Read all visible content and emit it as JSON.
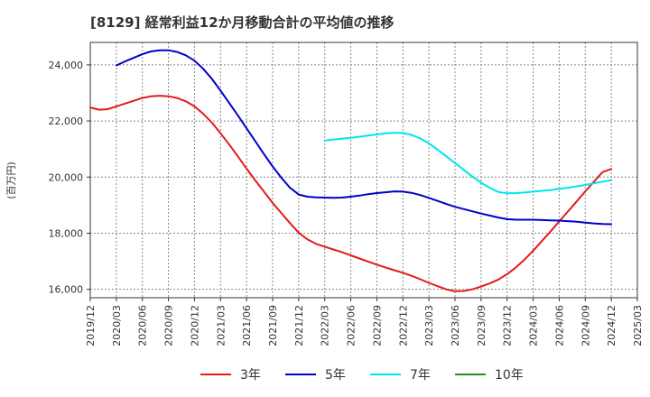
{
  "chart_data": {
    "type": "line",
    "title": "[8129]  経常利益12か月移動合計の平均値の推移",
    "ylabel": "(百万円)",
    "xlabel": "",
    "ylim": [
      15700,
      24800
    ],
    "yticks": [
      16000,
      18000,
      20000,
      22000,
      24000
    ],
    "ytick_labels": [
      "16,000",
      "18,000",
      "20,000",
      "22,000",
      "24,000"
    ],
    "xticks": [
      "2019/12",
      "2020/03",
      "2020/06",
      "2020/09",
      "2020/12",
      "2021/03",
      "2021/06",
      "2021/09",
      "2021/12",
      "2022/03",
      "2022/06",
      "2022/09",
      "2022/12",
      "2023/03",
      "2023/06",
      "2023/09",
      "2023/12",
      "2024/03",
      "2024/06",
      "2024/09",
      "2024/12",
      "2025/03"
    ],
    "grid": true,
    "legend_position": "bottom",
    "series": [
      {
        "name": "3年",
        "color": "#e41a1c",
        "x": [
          "2019/12",
          "2020/01",
          "2020/02",
          "2020/03",
          "2020/04",
          "2020/05",
          "2020/06",
          "2020/07",
          "2020/08",
          "2020/09",
          "2020/10",
          "2020/11",
          "2020/12",
          "2021/01",
          "2021/02",
          "2021/03",
          "2021/04",
          "2021/05",
          "2021/06",
          "2021/07",
          "2021/08",
          "2021/09",
          "2021/10",
          "2021/11",
          "2021/12",
          "2022/01",
          "2022/02",
          "2022/03",
          "2022/04",
          "2022/05",
          "2022/06",
          "2022/07",
          "2022/08",
          "2022/09",
          "2022/10",
          "2022/11",
          "2022/12",
          "2023/01",
          "2023/02",
          "2023/03",
          "2023/04",
          "2023/05",
          "2023/06",
          "2023/07",
          "2023/08",
          "2023/09",
          "2023/10",
          "2023/11",
          "2023/12",
          "2024/01",
          "2024/02",
          "2024/03",
          "2024/04",
          "2024/05",
          "2024/06",
          "2024/07",
          "2024/08",
          "2024/09",
          "2024/10",
          "2024/11",
          "2024/12"
        ],
        "values": [
          22480,
          22400,
          22420,
          22520,
          22620,
          22720,
          22820,
          22880,
          22900,
          22880,
          22820,
          22700,
          22520,
          22260,
          21940,
          21560,
          21160,
          20740,
          20300,
          19880,
          19480,
          19080,
          18720,
          18360,
          18020,
          17780,
          17620,
          17520,
          17420,
          17320,
          17210,
          17100,
          16990,
          16880,
          16780,
          16680,
          16590,
          16480,
          16360,
          16230,
          16110,
          16000,
          15930,
          15940,
          16000,
          16100,
          16210,
          16350,
          16540,
          16780,
          17060,
          17380,
          17720,
          18060,
          18420,
          18770,
          19130,
          19490,
          19840,
          20180,
          20290
        ]
      },
      {
        "name": "5年",
        "color": "#0000cc",
        "x": [
          "2020/03",
          "2020/04",
          "2020/05",
          "2020/06",
          "2020/07",
          "2020/08",
          "2020/09",
          "2020/10",
          "2020/11",
          "2020/12",
          "2021/01",
          "2021/02",
          "2021/03",
          "2021/04",
          "2021/05",
          "2021/06",
          "2021/07",
          "2021/08",
          "2021/09",
          "2021/10",
          "2021/11",
          "2021/12",
          "2022/01",
          "2022/02",
          "2022/03",
          "2022/04",
          "2022/05",
          "2022/06",
          "2022/07",
          "2022/08",
          "2022/09",
          "2022/10",
          "2022/11",
          "2022/12",
          "2023/01",
          "2023/02",
          "2023/03",
          "2023/04",
          "2023/05",
          "2023/06",
          "2023/07",
          "2023/08",
          "2023/09",
          "2023/10",
          "2023/11",
          "2023/12",
          "2024/01",
          "2024/02",
          "2024/03",
          "2024/04",
          "2024/05",
          "2024/06",
          "2024/07",
          "2024/08",
          "2024/09",
          "2024/10",
          "2024/11",
          "2024/12"
        ],
        "values": [
          23980,
          24120,
          24250,
          24380,
          24480,
          24520,
          24520,
          24460,
          24340,
          24150,
          23860,
          23500,
          23080,
          22640,
          22200,
          21740,
          21280,
          20820,
          20380,
          19980,
          19620,
          19380,
          19300,
          19280,
          19270,
          19260,
          19270,
          19300,
          19340,
          19390,
          19430,
          19460,
          19490,
          19480,
          19440,
          19360,
          19260,
          19150,
          19040,
          18940,
          18860,
          18780,
          18700,
          18630,
          18560,
          18500,
          18480,
          18480,
          18480,
          18470,
          18460,
          18450,
          18430,
          18410,
          18380,
          18350,
          18330,
          18320
        ]
      },
      {
        "name": "7年",
        "color": "#00e5ee",
        "x": [
          "2022/03",
          "2022/04",
          "2022/05",
          "2022/06",
          "2022/07",
          "2022/08",
          "2022/09",
          "2022/10",
          "2022/11",
          "2022/12",
          "2023/01",
          "2023/02",
          "2023/03",
          "2023/04",
          "2023/05",
          "2023/06",
          "2023/07",
          "2023/08",
          "2023/09",
          "2023/10",
          "2023/11",
          "2023/12",
          "2024/01",
          "2024/02",
          "2024/03",
          "2024/04",
          "2024/05",
          "2024/06",
          "2024/07",
          "2024/08",
          "2024/09",
          "2024/10",
          "2024/11",
          "2024/12"
        ],
        "values": [
          21300,
          21340,
          21370,
          21400,
          21440,
          21480,
          21520,
          21560,
          21580,
          21570,
          21500,
          21380,
          21200,
          20980,
          20740,
          20500,
          20260,
          20020,
          19800,
          19620,
          19470,
          19420,
          19430,
          19450,
          19480,
          19510,
          19540,
          19580,
          19620,
          19670,
          19720,
          19780,
          19840,
          19890
        ]
      },
      {
        "name": "10年",
        "color": "#228b22",
        "x": [],
        "values": []
      }
    ]
  }
}
